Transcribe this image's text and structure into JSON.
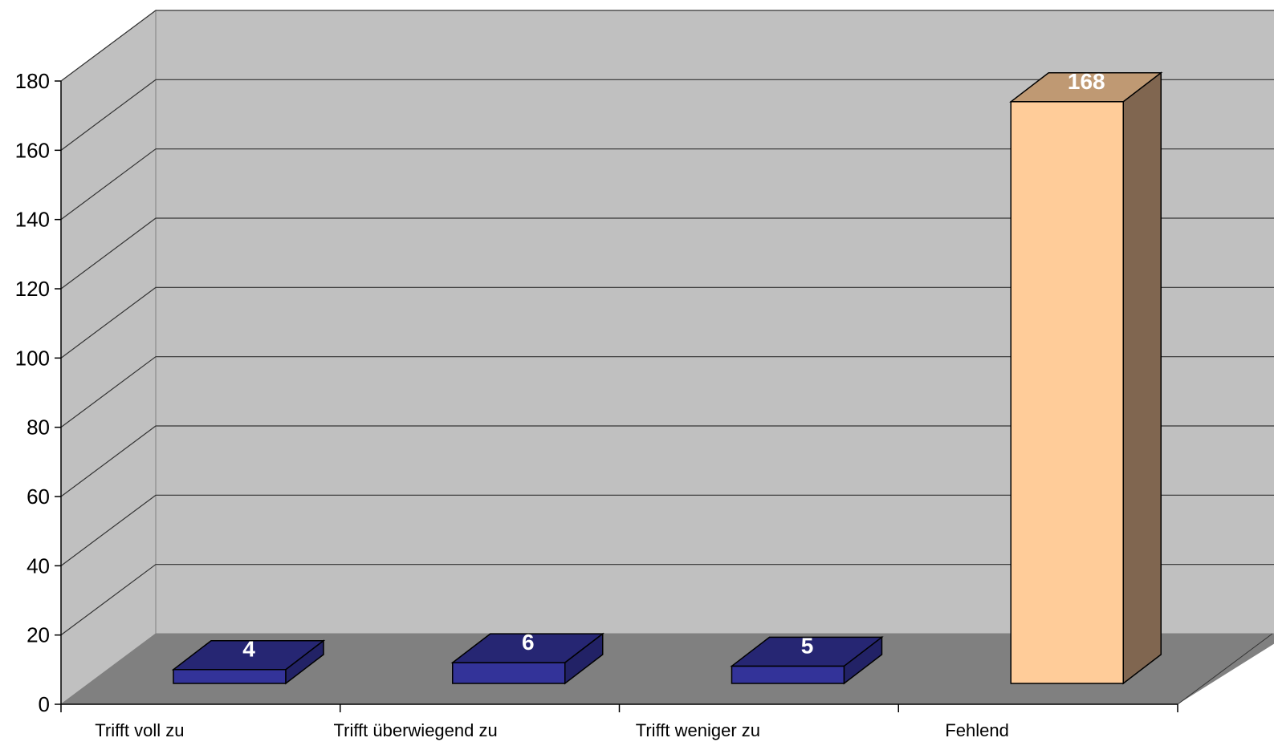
{
  "chart_data": {
    "type": "bar",
    "categories": [
      "Trifft voll zu",
      "Trifft überwiegend zu",
      "Trifft weniger zu",
      "Fehlend"
    ],
    "values": [
      4,
      6,
      5,
      168
    ],
    "data_labels": [
      "4",
      "6",
      "5",
      "168"
    ],
    "title": "",
    "xlabel": "",
    "ylabel": "",
    "ylim": [
      0,
      180
    ],
    "yticks": [
      "0",
      "20",
      "40",
      "60",
      "80",
      "100",
      "120",
      "140",
      "160",
      "180"
    ],
    "grid": true,
    "legend": "none",
    "colors": {
      "bar_front": [
        "#333399",
        "#333399",
        "#333399",
        "#FFCC99"
      ],
      "bar_top": [
        "#262673",
        "#262673",
        "#262673",
        "#BF9973"
      ],
      "bar_side": [
        "#222266",
        "#222266",
        "#222266",
        "#806650"
      ],
      "back_wall": "#C0C0C0",
      "side_wall": "#C0C0C0",
      "floor": "#808080",
      "gridline": "#333333"
    }
  }
}
